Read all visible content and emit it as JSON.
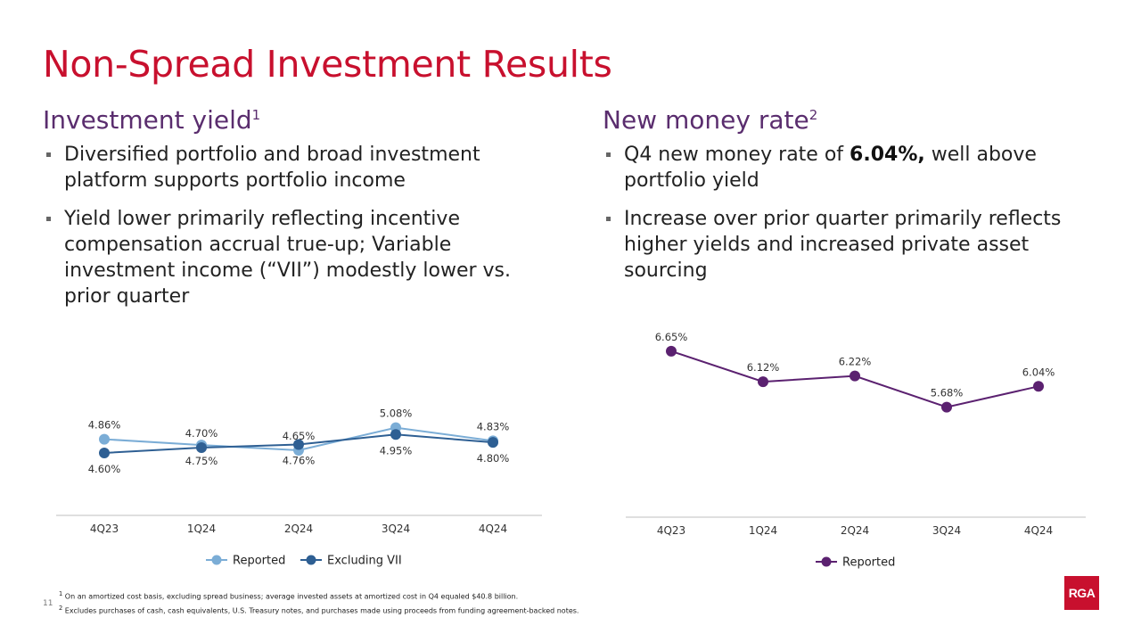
{
  "page": {
    "title": "Non-Spread Investment Results",
    "page_number": "11",
    "logo_text": "RGA"
  },
  "left": {
    "heading": "Investment yield",
    "heading_sup": "1",
    "bullets": [
      {
        "text": "Diversified portfolio and broad investment platform supports portfolio income"
      },
      {
        "text": "Yield lower primarily reflecting incentive compensation accrual true-up; Variable investment income (“VII”) modestly lower vs. prior quarter"
      }
    ]
  },
  "right": {
    "heading": "New money rate",
    "heading_sup": "2",
    "bullets": [
      {
        "pre": "Q4 new money rate of ",
        "bold": "6.04%,",
        "post": " well above portfolio yield"
      },
      {
        "text": "Increase over prior quarter primarily reflects higher yields and increased private asset sourcing"
      }
    ]
  },
  "colors": {
    "title_red": "#c8102e",
    "heading_purple": "#5a2d6e",
    "reported_light_blue": "#7badd6",
    "excluding_vii_blue": "#2e5f93",
    "new_money_purple": "#5b2170"
  },
  "chart_data": [
    {
      "type": "line",
      "title": "Investment yield",
      "categories": [
        "4Q23",
        "1Q24",
        "2Q24",
        "3Q24",
        "4Q24"
      ],
      "series": [
        {
          "name": "Reported",
          "values": [
            4.86,
            4.75,
            4.65,
            5.08,
            4.83
          ],
          "labels": [
            "4.86%",
            "4.75%",
            "4.65%",
            "5.08%",
            "4.83%"
          ],
          "label_pos": [
            "above",
            "below",
            "above",
            "above",
            "above"
          ]
        },
        {
          "name": "Excluding VII",
          "values": [
            4.6,
            4.7,
            4.76,
            4.95,
            4.8
          ],
          "labels": [
            "4.60%",
            "4.70%",
            "4.76%",
            "4.95%",
            "4.80%"
          ],
          "label_pos": [
            "below",
            "above",
            "below",
            "below",
            "below"
          ]
        }
      ],
      "ylim": [
        3.55,
        5.75
      ],
      "grid": false,
      "legend": "bottom"
    },
    {
      "type": "line",
      "title": "New money rate",
      "categories": [
        "4Q23",
        "1Q24",
        "2Q24",
        "3Q24",
        "4Q24"
      ],
      "series": [
        {
          "name": "Reported",
          "values": [
            6.65,
            6.12,
            6.22,
            5.68,
            6.04
          ],
          "labels": [
            "6.65%",
            "6.12%",
            "6.22%",
            "5.68%",
            "6.04%"
          ],
          "label_pos": [
            "above",
            "above",
            "above",
            "above",
            "above"
          ]
        }
      ],
      "ylim": [
        3.85,
        7.25
      ],
      "grid": false,
      "legend": "bottom"
    }
  ],
  "footnotes": [
    {
      "marker": "1",
      "text": "On an amortized cost basis, excluding spread business; average invested assets at amortized cost in Q4 equaled $40.8 billion."
    },
    {
      "marker": "2",
      "text": "Excludes purchases of cash, cash equivalents, U.S. Treasury notes, and purchases made using proceeds from funding agreement-backed notes."
    }
  ]
}
